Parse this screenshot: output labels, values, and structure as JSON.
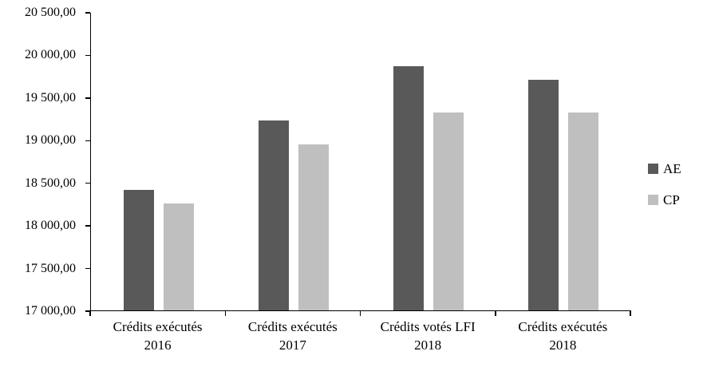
{
  "chart_data": {
    "type": "bar",
    "title": "",
    "xlabel": "",
    "ylabel": "",
    "categories": [
      {
        "line1": "Crédits exécutés",
        "line2": "2016"
      },
      {
        "line1": "Crédits exécutés",
        "line2": "2017"
      },
      {
        "line1": "Crédits votés LFI",
        "line2": "2018"
      },
      {
        "line1": "Crédits exécutés",
        "line2": "2018"
      }
    ],
    "series": [
      {
        "name": "AE",
        "color": "#595959",
        "values": [
          18420,
          19230,
          19870,
          19710
        ]
      },
      {
        "name": "CP",
        "color": "#bfbfbf",
        "values": [
          18260,
          18950,
          19330,
          19330
        ]
      }
    ],
    "ylim": [
      17000,
      20500
    ],
    "ytick_step": 500,
    "ytick_labels": [
      "17 000,00",
      "17 500,00",
      "18 000,00",
      "18 500,00",
      "19 000,00",
      "19 500,00",
      "20 000,00",
      "20 500,00"
    ],
    "grid": false,
    "legend_position": "right",
    "axis_color": "#000000",
    "text_color": "#000000"
  }
}
